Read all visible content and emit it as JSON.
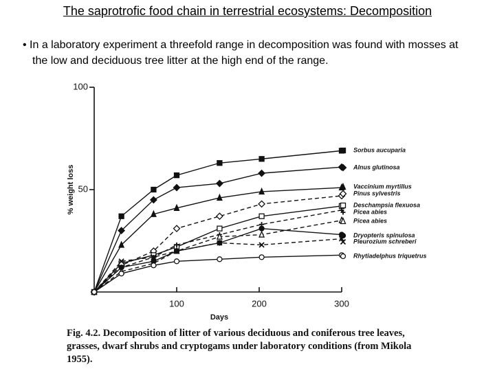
{
  "title": "The saprotrofic food chain in terrestrial ecosystems: Decomposition",
  "bullet": "In a laboratory experiment a threefold range in decomposition was found with mosses at the low and deciduous tree litter at the high end of the range.",
  "chart_data": {
    "type": "line",
    "x_label": "Days",
    "y_label": "% weight loss",
    "x": [
      0,
      33,
      72,
      100,
      152,
      203,
      300
    ],
    "xlim": [
      0,
      300
    ],
    "xticks": [
      100,
      200,
      300
    ],
    "ylim": [
      0,
      100
    ],
    "yticks": [
      50,
      100
    ],
    "series": [
      {
        "name": "Sorbus aucuparia",
        "color": "#111111",
        "marker": "square",
        "dashed": false,
        "values": [
          0,
          37,
          50,
          57,
          63,
          65,
          69
        ]
      },
      {
        "name": "Alnus glutinosa",
        "color": "#111111",
        "marker": "diamond",
        "dashed": false,
        "values": [
          0,
          30,
          45,
          51,
          53,
          58,
          61
        ]
      },
      {
        "name": "Vaccinium myrtillus",
        "color": "#111111",
        "marker": "triangle",
        "dashed": false,
        "values": [
          0,
          23,
          38,
          41,
          46,
          49,
          51
        ]
      },
      {
        "name": "Pinus sylvestris",
        "color": "#111111",
        "marker": "diamond-open",
        "dashed": true,
        "values": [
          0,
          13,
          20,
          31,
          37,
          43,
          47
        ]
      },
      {
        "name": "Deschampsia flexuosa",
        "color": "#111111",
        "marker": "square-open",
        "dashed": false,
        "values": [
          0,
          14,
          18,
          22,
          31,
          37,
          42
        ]
      },
      {
        "name": "Picea abies",
        "color": "#111111",
        "marker": "plus",
        "dashed": true,
        "values": [
          0,
          12,
          17,
          23,
          28,
          33,
          40
        ]
      },
      {
        "name": "Picea abies",
        "color": "#111111",
        "marker": "triangle-open",
        "dashed": true,
        "values": [
          0,
          10,
          14,
          20,
          27,
          28,
          35
        ]
      },
      {
        "name": "Dryopteris spinulosa",
        "color": "#111111",
        "marker": "circle",
        "dashed": false,
        "values": [
          0,
          12,
          15,
          20,
          24,
          31,
          28
        ]
      },
      {
        "name": "Pleurozium schreberi",
        "color": "#111111",
        "marker": "x",
        "dashed": true,
        "values": [
          0,
          15,
          17,
          20,
          24,
          23,
          26
        ]
      },
      {
        "name": "Rhytiadelphus triquetrus",
        "color": "#111111",
        "marker": "circle-open",
        "dashed": false,
        "values": [
          0,
          9,
          13,
          15,
          16,
          17,
          18
        ]
      }
    ]
  },
  "caption": "Fig. 4.2. Decomposition of litter of various deciduous and coniferous tree leaves, grasses, dwarf shrubs and cryptogams under laboratory conditions (from Mikola 1955)."
}
